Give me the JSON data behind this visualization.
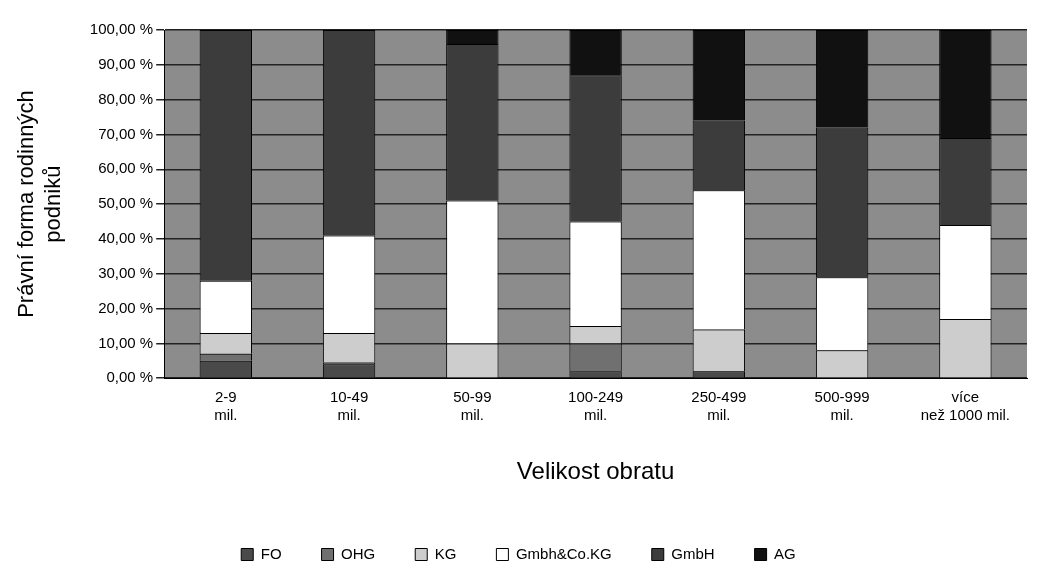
{
  "chart_data": {
    "type": "bar",
    "stacked": true,
    "xlabel": "Velikost obratu",
    "ylabel": "Právní forma rodinných podniků",
    "categories": [
      "2-9 mil.",
      "10-49 mil.",
      "50-99 mil.",
      "100-249 mil.",
      "250-499 mil.",
      "500-999 mil.",
      "více než 1000 mil."
    ],
    "series": [
      {
        "name": "FO",
        "color": "#4a4a4a",
        "values": [
          5,
          4,
          0,
          2,
          2,
          0,
          0
        ]
      },
      {
        "name": "OHG",
        "color": "#707070",
        "values": [
          2,
          0.5,
          0,
          8,
          0,
          0,
          0
        ]
      },
      {
        "name": "KG",
        "color": "#cdcdcd",
        "values": [
          6,
          8.5,
          10,
          5,
          12,
          8,
          17
        ]
      },
      {
        "name": "Gmbh&Co.KG",
        "color": "#ffffff",
        "values": [
          15,
          28,
          41,
          30,
          40,
          21,
          27
        ]
      },
      {
        "name": "GmbH",
        "color": "#3c3c3c",
        "values": [
          72,
          59,
          45,
          42,
          20,
          43,
          25
        ]
      },
      {
        "name": "AG",
        "color": "#111111",
        "values": [
          0,
          0,
          4,
          13,
          26,
          28,
          31
        ]
      }
    ],
    "ylim": [
      0,
      100
    ],
    "yticks": [
      {
        "value": 0,
        "label": "0,00 %"
      },
      {
        "value": 10,
        "label": "10,00 %"
      },
      {
        "value": 20,
        "label": "20,00 %"
      },
      {
        "value": 30,
        "label": "30,00 %"
      },
      {
        "value": 40,
        "label": "40,00 %"
      },
      {
        "value": 50,
        "label": "50,00 %"
      },
      {
        "value": 60,
        "label": "60,00 %"
      },
      {
        "value": 70,
        "label": "70,00 %"
      },
      {
        "value": 80,
        "label": "80,00 %"
      },
      {
        "value": 90,
        "label": "90,00 %"
      },
      {
        "value": 100,
        "label": "100,00 %"
      }
    ],
    "grid": "y",
    "legend": "bottom"
  }
}
